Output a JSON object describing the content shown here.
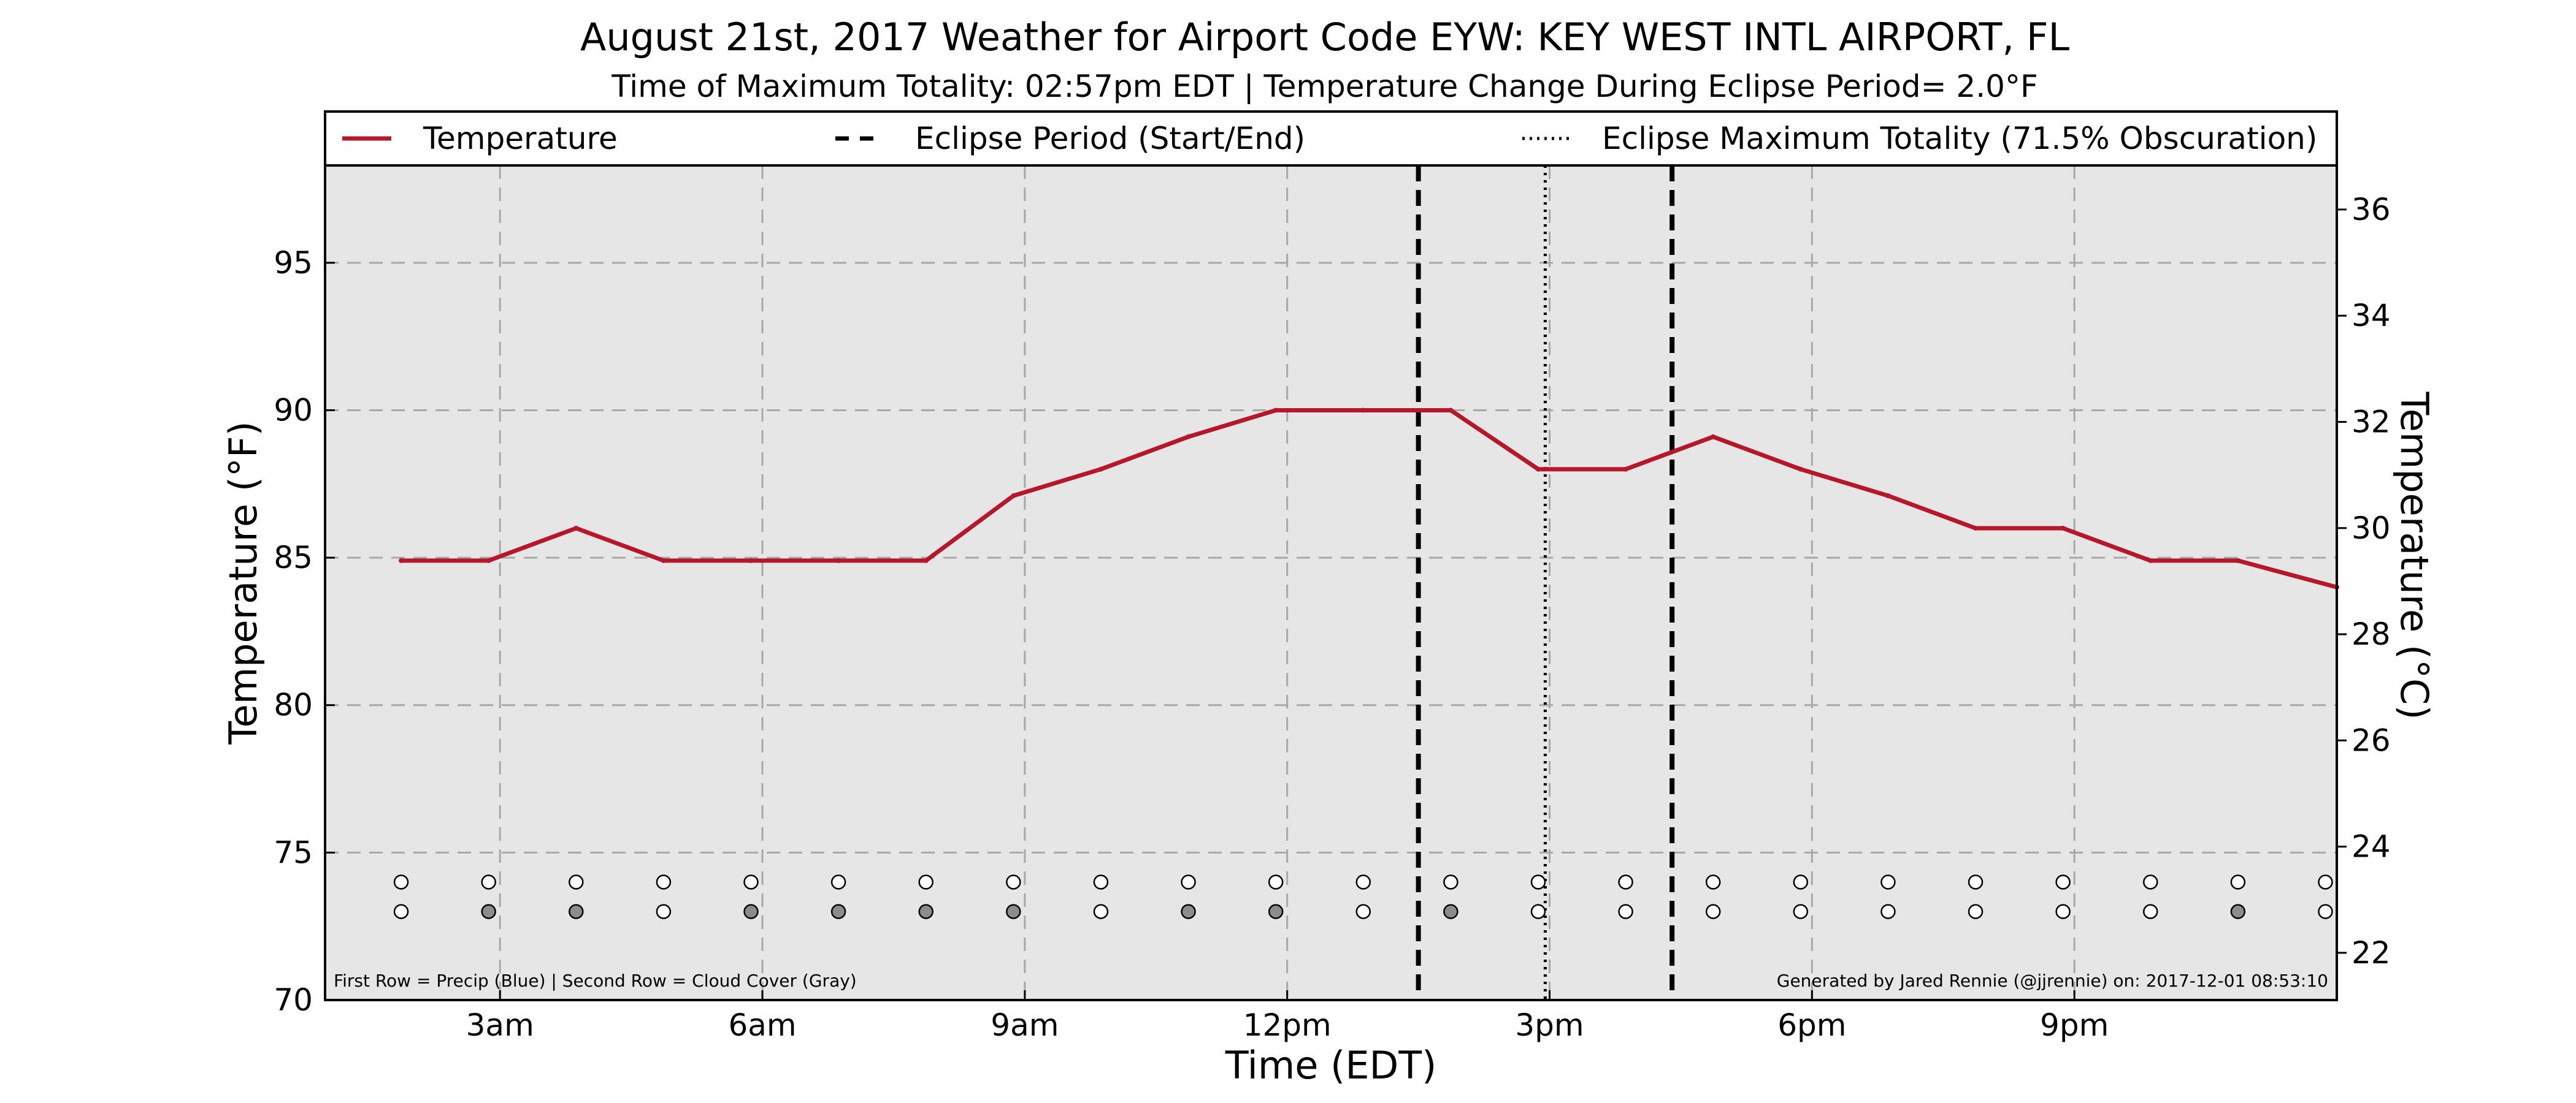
{
  "chart_data": {
    "type": "line",
    "title": "August 21st, 2017 Weather for Airport Code EYW: KEY WEST INTL AIRPORT, FL",
    "subtitle": "Time of Maximum Totality: 02:57pm EDT | Temperature Change During Eclipse Period= 2.0°F",
    "xlabel": "Time (EDT)",
    "ylabel_left": "Temperature (°F)",
    "ylabel_right": "Temperature (°C)",
    "x_range": [
      1.0,
      24.0
    ],
    "ylim_left": [
      70,
      98.3
    ],
    "ylim_right": [
      21.11,
      36.83
    ],
    "x_ticks": [
      {
        "x": 3,
        "label": "3am"
      },
      {
        "x": 6,
        "label": "6am"
      },
      {
        "x": 9,
        "label": "9am"
      },
      {
        "x": 12,
        "label": "12pm"
      },
      {
        "x": 15,
        "label": "3pm"
      },
      {
        "x": 18,
        "label": "6pm"
      },
      {
        "x": 21,
        "label": "9pm"
      }
    ],
    "y_ticks_left": [
      70,
      75,
      80,
      85,
      90,
      95
    ],
    "y_ticks_right": [
      22,
      24,
      26,
      28,
      30,
      32,
      34,
      36
    ],
    "grid": true,
    "series": [
      {
        "name": "Temperature",
        "color": "#b5182b",
        "points": [
          [
            1.87,
            84.9
          ],
          [
            2.87,
            84.9
          ],
          [
            3.87,
            86.0
          ],
          [
            4.87,
            84.9
          ],
          [
            5.87,
            84.9
          ],
          [
            6.87,
            84.9
          ],
          [
            7.87,
            84.9
          ],
          [
            8.87,
            87.1
          ],
          [
            9.87,
            88.0
          ],
          [
            10.87,
            89.1
          ],
          [
            11.87,
            90.0
          ],
          [
            12.87,
            90.0
          ],
          [
            13.87,
            90.0
          ],
          [
            14.87,
            88.0
          ],
          [
            15.87,
            88.0
          ],
          [
            16.87,
            89.1
          ],
          [
            17.87,
            88.0
          ],
          [
            18.87,
            87.1
          ],
          [
            19.87,
            86.0
          ],
          [
            20.87,
            86.0
          ],
          [
            21.87,
            84.9
          ],
          [
            22.87,
            84.9
          ],
          [
            24.0,
            84.0
          ]
        ]
      }
    ],
    "eclipse_start": 13.5,
    "eclipse_end": 16.4,
    "eclipse_max": 14.95,
    "legend": {
      "position": "top",
      "items": [
        {
          "label": "Temperature",
          "style": "solid",
          "color": "#b5182b"
        },
        {
          "label": "Eclipse Period (Start/End)",
          "style": "dashed",
          "color": "#000000"
        },
        {
          "label": "Eclipse Maximum Totality (71.5% Obscuration)",
          "style": "dotted",
          "color": "#000000"
        }
      ]
    },
    "indicator_rows": {
      "x": [
        1.87,
        2.87,
        3.87,
        4.87,
        5.87,
        6.87,
        7.87,
        8.87,
        9.87,
        10.87,
        11.87,
        12.87,
        13.87,
        14.87,
        15.87,
        16.87,
        17.87,
        18.87,
        19.87,
        20.87,
        21.87,
        22.87,
        23.87
      ],
      "precip_filled": [
        false,
        false,
        false,
        false,
        false,
        false,
        false,
        false,
        false,
        false,
        false,
        false,
        false,
        false,
        false,
        false,
        false,
        false,
        false,
        false,
        false,
        false,
        false
      ],
      "cloud_filled": [
        false,
        true,
        true,
        false,
        true,
        true,
        true,
        true,
        false,
        true,
        true,
        false,
        true,
        false,
        false,
        false,
        false,
        false,
        false,
        false,
        false,
        true,
        false
      ],
      "precip_y": 74.0,
      "cloud_y": 73.0,
      "filled_color": "#8c8c8c"
    },
    "footnote_left": "First Row = Precip (Blue) | Second Row = Cloud Cover (Gray)",
    "footnote_right": "Generated by Jared Rennie (@jjrennie) on: 2017-12-01 08:53:10",
    "colors": {
      "plot_background": "#e6e6e6",
      "grid": "#a8a8a8"
    }
  }
}
